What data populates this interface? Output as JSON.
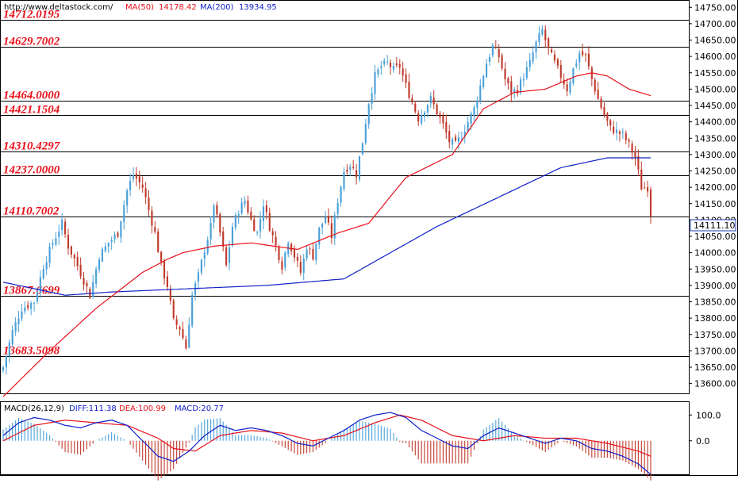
{
  "header": {
    "site": "http://www.deltastock.com/",
    "ma50_label": "MA(50)",
    "ma50_value": "14178.42",
    "ma200_label": "MA(200)",
    "ma200_value": "13934.95"
  },
  "macd_header": {
    "label": "MACD(26,12,9)",
    "diff_label": "DIFF:111.38",
    "dea_label": "DEA:100.99",
    "macd_label": "MACD:20.77"
  },
  "price_badge": "14111.10",
  "colors": {
    "up": "#4aa0d8",
    "down": "#c0392b",
    "ma50": "#e8101a",
    "ma200": "#1020c8",
    "level_text": "#e8101a",
    "grid": "#000000"
  },
  "chart_data": [
    {
      "type": "candlestick",
      "title": "",
      "ylim": [
        13570,
        14770
      ],
      "y_ticks": [
        "14750.00",
        "14700.00",
        "14650.00",
        "14600.00",
        "14550.00",
        "14500.00",
        "14450.00",
        "14400.00",
        "14350.00",
        "14300.00",
        "14250.00",
        "14200.00",
        "14150.00",
        "14100.00",
        "14050.00",
        "14000.00",
        "13950.00",
        "13900.00",
        "13850.00",
        "13800.00",
        "13750.00",
        "13700.00",
        "13650.00",
        "13600.00"
      ],
      "levels": [
        {
          "value": 14712.0195,
          "label": "14712.0195"
        },
        {
          "value": 14629.7002,
          "label": "14629.7002"
        },
        {
          "value": 14464.0,
          "label": "14464.0000"
        },
        {
          "value": 14421.1504,
          "label": "14421.1504"
        },
        {
          "value": 14310.4297,
          "label": "14310.4297"
        },
        {
          "value": 14237.0,
          "label": "14237.0000"
        },
        {
          "value": 14110.7002,
          "label": "14110.7002"
        },
        {
          "value": 13867.6699,
          "label": "13867.6699"
        },
        {
          "value": 13683.5098,
          "label": "13683.5098"
        }
      ],
      "close_anchors": [
        [
          0,
          13650
        ],
        [
          3,
          13760
        ],
        [
          6,
          13830
        ],
        [
          10,
          13850
        ],
        [
          13,
          13960
        ],
        [
          16,
          14030
        ],
        [
          19,
          14090
        ],
        [
          21,
          14020
        ],
        [
          24,
          13960
        ],
        [
          28,
          13870
        ],
        [
          31,
          13990
        ],
        [
          34,
          14030
        ],
        [
          37,
          14060
        ],
        [
          40,
          14190
        ],
        [
          42,
          14240
        ],
        [
          45,
          14200
        ],
        [
          47,
          14130
        ],
        [
          49,
          14060
        ],
        [
          51,
          13960
        ],
        [
          53,
          13900
        ],
        [
          55,
          13790
        ],
        [
          57,
          13770
        ],
        [
          59,
          13710
        ],
        [
          61,
          13870
        ],
        [
          63,
          13930
        ],
        [
          65,
          14010
        ],
        [
          67,
          14080
        ],
        [
          68,
          14150
        ],
        [
          70,
          14060
        ],
        [
          72,
          13960
        ],
        [
          74,
          14080
        ],
        [
          76,
          14130
        ],
        [
          78,
          14160
        ],
        [
          80,
          14100
        ],
        [
          82,
          14060
        ],
        [
          84,
          14150
        ],
        [
          86,
          14080
        ],
        [
          88,
          14020
        ],
        [
          90,
          13960
        ],
        [
          92,
          14040
        ],
        [
          94,
          13990
        ],
        [
          96,
          13940
        ],
        [
          98,
          14020
        ],
        [
          100,
          13990
        ],
        [
          102,
          14070
        ],
        [
          104,
          14110
        ],
        [
          106,
          14050
        ],
        [
          108,
          14160
        ],
        [
          110,
          14250
        ],
        [
          112,
          14270
        ],
        [
          114,
          14240
        ],
        [
          116,
          14340
        ],
        [
          118,
          14460
        ],
        [
          120,
          14540
        ],
        [
          122,
          14570
        ],
        [
          124,
          14580
        ],
        [
          126,
          14560
        ],
        [
          128,
          14570
        ],
        [
          130,
          14510
        ],
        [
          132,
          14460
        ],
        [
          134,
          14410
        ],
        [
          136,
          14440
        ],
        [
          138,
          14470
        ],
        [
          140,
          14430
        ],
        [
          142,
          14390
        ],
        [
          144,
          14340
        ],
        [
          146,
          14330
        ],
        [
          148,
          14360
        ],
        [
          150,
          14400
        ],
        [
          152,
          14440
        ],
        [
          154,
          14510
        ],
        [
          156,
          14580
        ],
        [
          158,
          14630
        ],
        [
          160,
          14600
        ],
        [
          162,
          14530
        ],
        [
          164,
          14490
        ],
        [
          166,
          14500
        ],
        [
          168,
          14540
        ],
        [
          170,
          14580
        ],
        [
          172,
          14640
        ],
        [
          174,
          14680
        ],
        [
          176,
          14620
        ],
        [
          178,
          14580
        ],
        [
          180,
          14540
        ],
        [
          182,
          14500
        ],
        [
          184,
          14560
        ],
        [
          186,
          14610
        ],
        [
          188,
          14600
        ],
        [
          190,
          14530
        ],
        [
          192,
          14470
        ],
        [
          194,
          14420
        ],
        [
          196,
          14380
        ],
        [
          198,
          14370
        ],
        [
          200,
          14360
        ],
        [
          202,
          14330
        ],
        [
          204,
          14290
        ],
        [
          206,
          14200
        ],
        [
          208,
          14200
        ],
        [
          209,
          14111.1
        ]
      ],
      "ma50_anchors": [
        [
          0,
          13560
        ],
        [
          15,
          13700
        ],
        [
          30,
          13830
        ],
        [
          45,
          13940
        ],
        [
          53,
          13980
        ],
        [
          58,
          14000
        ],
        [
          68,
          14020
        ],
        [
          80,
          14030
        ],
        [
          95,
          14010
        ],
        [
          108,
          14060
        ],
        [
          118,
          14090
        ],
        [
          130,
          14230
        ],
        [
          145,
          14300
        ],
        [
          155,
          14440
        ],
        [
          165,
          14490
        ],
        [
          175,
          14500
        ],
        [
          185,
          14540
        ],
        [
          190,
          14550
        ],
        [
          195,
          14540
        ],
        [
          202,
          14500
        ],
        [
          209,
          14480
        ]
      ],
      "ma200_anchors": [
        [
          0,
          13910
        ],
        [
          10,
          13890
        ],
        [
          20,
          13870
        ],
        [
          35,
          13880
        ],
        [
          60,
          13890
        ],
        [
          85,
          13900
        ],
        [
          110,
          13920
        ],
        [
          125,
          14000
        ],
        [
          140,
          14080
        ],
        [
          160,
          14170
        ],
        [
          180,
          14260
        ],
        [
          195,
          14290
        ],
        [
          203,
          14290
        ],
        [
          209,
          14290
        ]
      ]
    },
    {
      "type": "macd",
      "title": "",
      "ylim": [
        -130,
        150
      ],
      "y_ticks": [
        "100.0",
        "0.0"
      ],
      "diff_anchors": [
        [
          0,
          20
        ],
        [
          5,
          70
        ],
        [
          10,
          90
        ],
        [
          15,
          80
        ],
        [
          20,
          60
        ],
        [
          25,
          50
        ],
        [
          30,
          70
        ],
        [
          35,
          80
        ],
        [
          40,
          60
        ],
        [
          45,
          0
        ],
        [
          50,
          -60
        ],
        [
          55,
          -80
        ],
        [
          60,
          -40
        ],
        [
          65,
          20
        ],
        [
          70,
          60
        ],
        [
          75,
          40
        ],
        [
          80,
          50
        ],
        [
          85,
          40
        ],
        [
          90,
          20
        ],
        [
          95,
          -10
        ],
        [
          100,
          -20
        ],
        [
          105,
          10
        ],
        [
          110,
          40
        ],
        [
          115,
          80
        ],
        [
          120,
          100
        ],
        [
          125,
          110
        ],
        [
          130,
          90
        ],
        [
          135,
          40
        ],
        [
          140,
          10
        ],
        [
          145,
          -20
        ],
        [
          150,
          -30
        ],
        [
          155,
          20
        ],
        [
          160,
          50
        ],
        [
          165,
          30
        ],
        [
          170,
          10
        ],
        [
          175,
          -10
        ],
        [
          180,
          10
        ],
        [
          185,
          0
        ],
        [
          190,
          -30
        ],
        [
          195,
          -40
        ],
        [
          200,
          -60
        ],
        [
          205,
          -90
        ],
        [
          209,
          -130
        ]
      ],
      "dea_anchors": [
        [
          0,
          0
        ],
        [
          10,
          60
        ],
        [
          20,
          80
        ],
        [
          30,
          70
        ],
        [
          40,
          60
        ],
        [
          50,
          10
        ],
        [
          55,
          -30
        ],
        [
          62,
          -40
        ],
        [
          70,
          20
        ],
        [
          80,
          40
        ],
        [
          90,
          30
        ],
        [
          100,
          0
        ],
        [
          110,
          20
        ],
        [
          120,
          70
        ],
        [
          128,
          100
        ],
        [
          135,
          80
        ],
        [
          145,
          20
        ],
        [
          155,
          0
        ],
        [
          165,
          20
        ],
        [
          175,
          10
        ],
        [
          185,
          10
        ],
        [
          195,
          -10
        ],
        [
          205,
          -40
        ],
        [
          209,
          -60
        ]
      ]
    }
  ]
}
